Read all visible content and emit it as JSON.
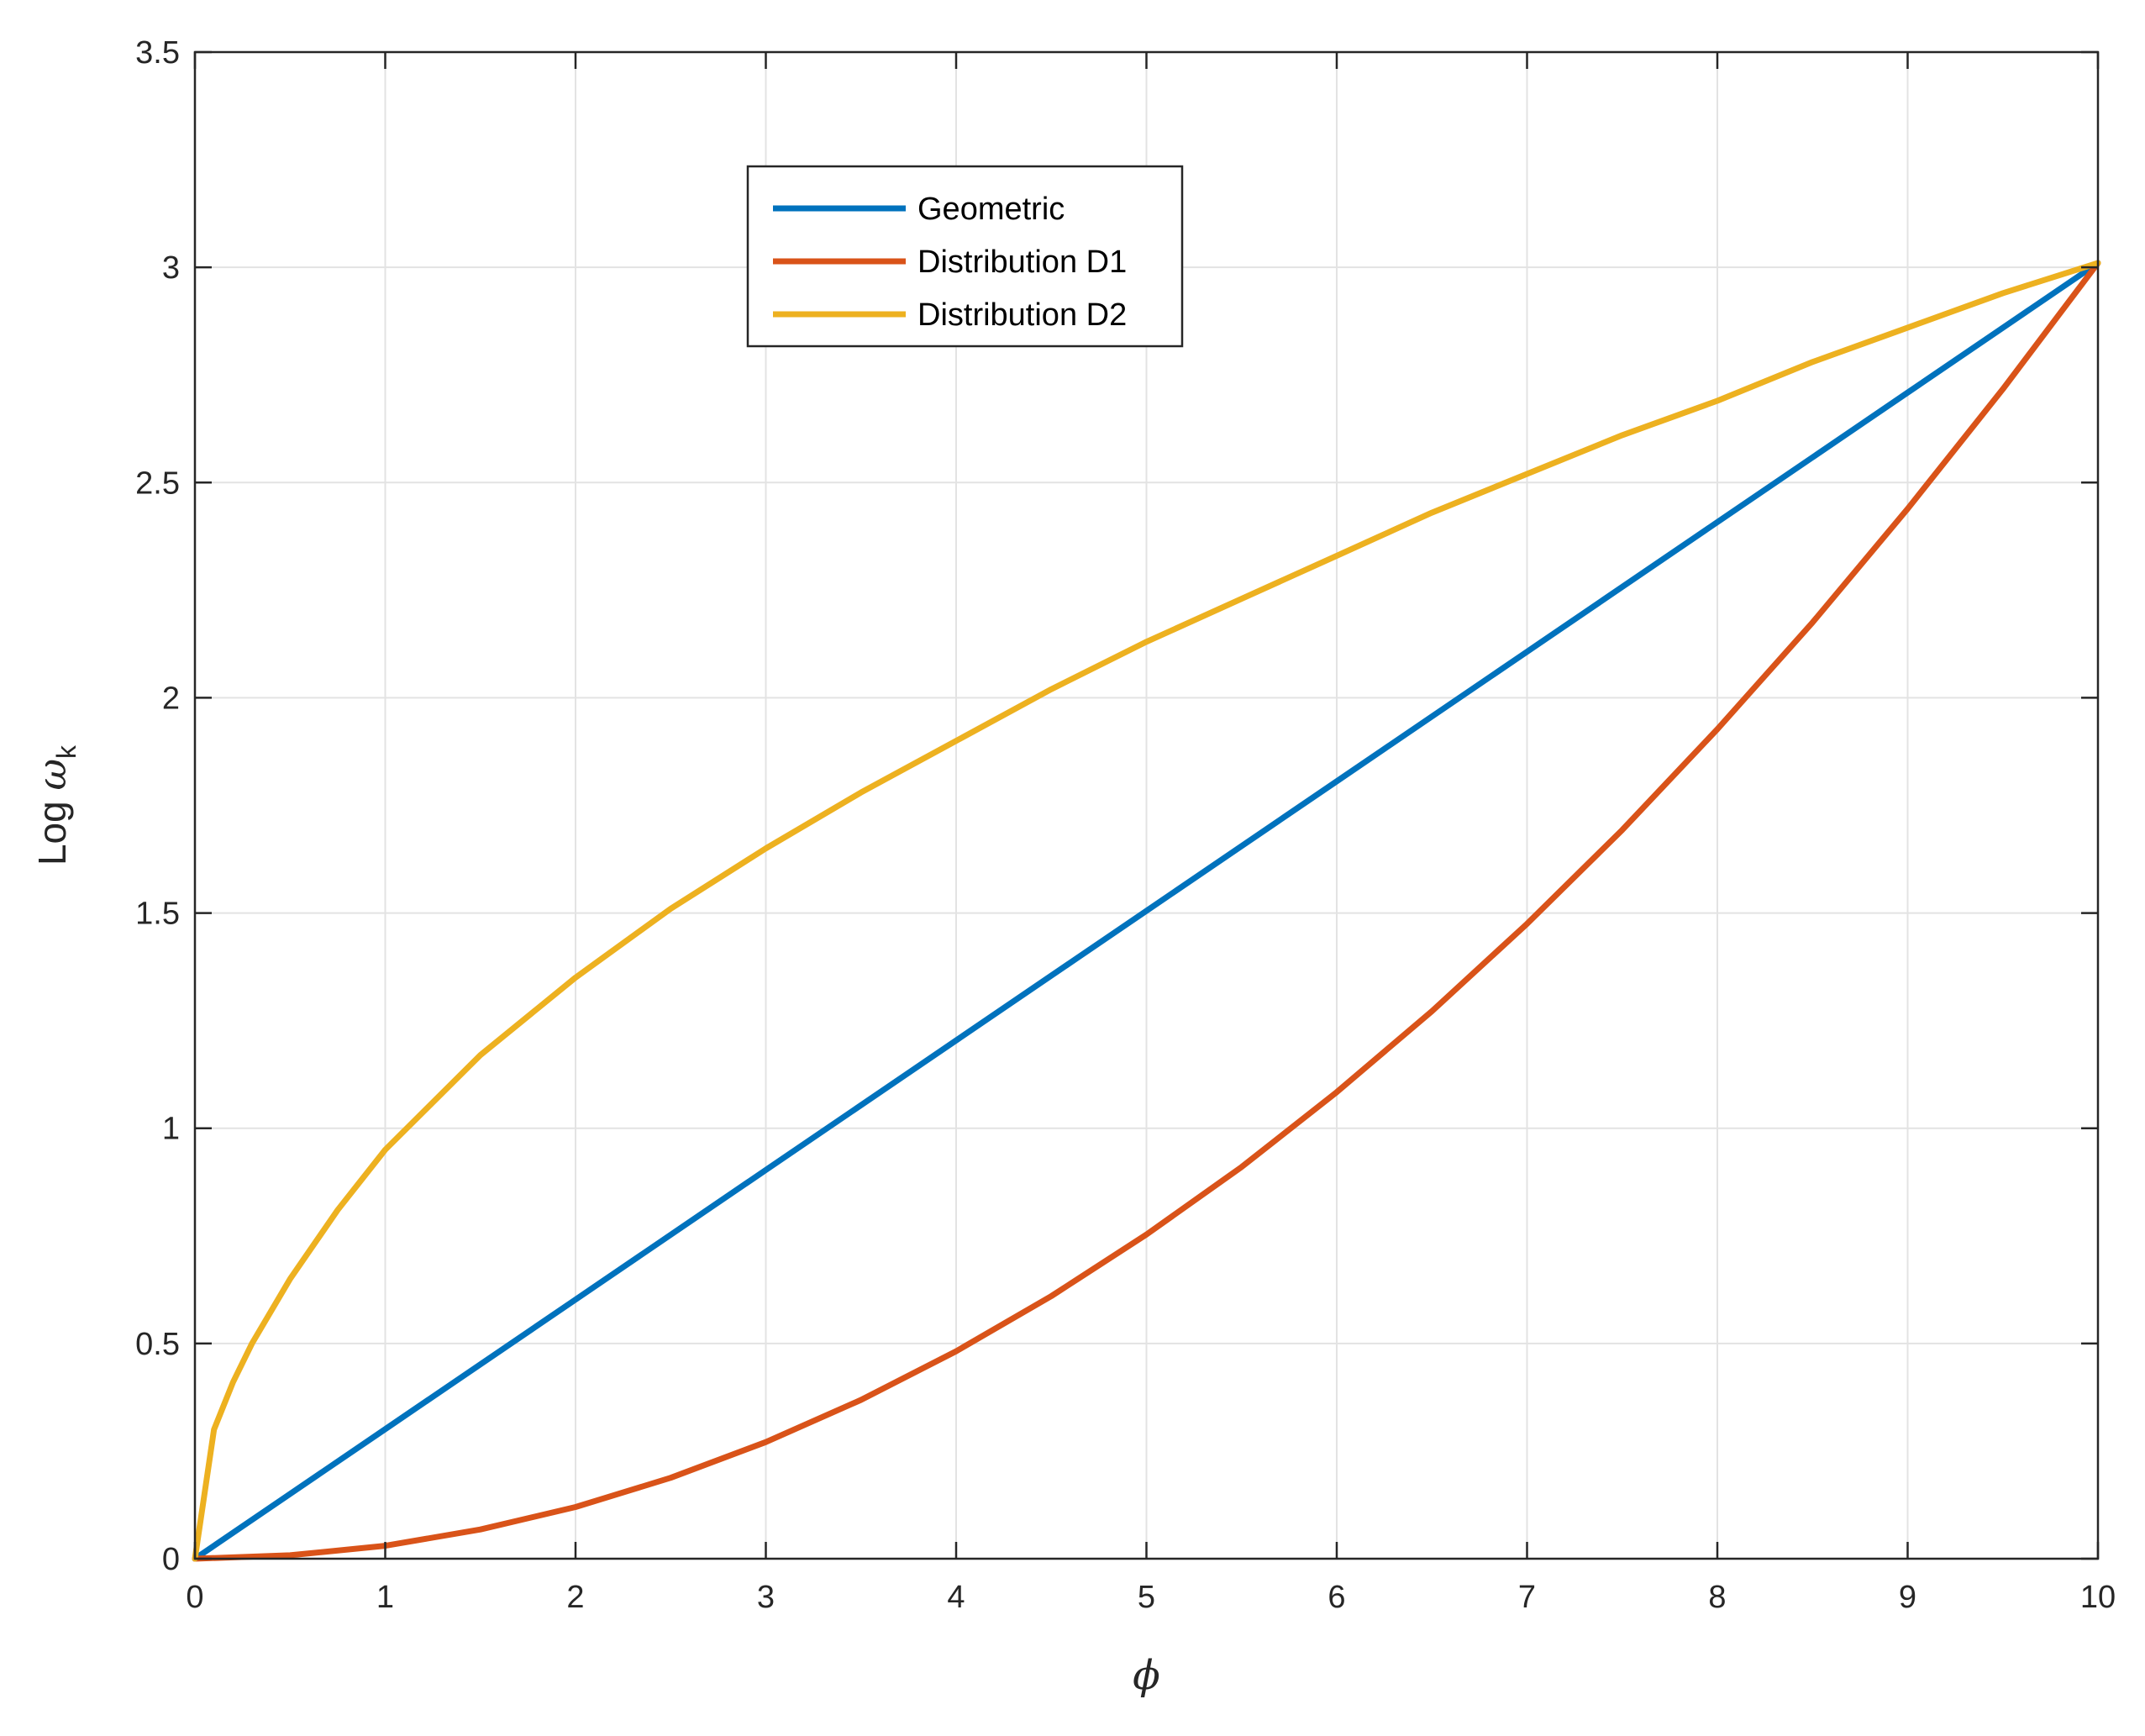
{
  "chart_data": {
    "type": "line",
    "title": "",
    "xlabel": "ϕ",
    "ylabel": {
      "prefix": "Log ",
      "symbol": "ω",
      "subscript": "k"
    },
    "xlim": [
      0,
      10
    ],
    "ylim": [
      0,
      3.5
    ],
    "xticks": [
      0,
      1,
      2,
      3,
      4,
      5,
      6,
      7,
      8,
      9,
      10
    ],
    "yticks": [
      0,
      0.5,
      1,
      1.5,
      2,
      2.5,
      3,
      3.5
    ],
    "xtick_labels": [
      "0",
      "1",
      "2",
      "3",
      "4",
      "5",
      "6",
      "7",
      "8",
      "9",
      "10"
    ],
    "ytick_labels": [
      "0",
      "0.5",
      "1",
      "1.5",
      "2",
      "2.5",
      "3",
      "3.5"
    ],
    "grid": true,
    "legend_position": "top-center",
    "series": [
      {
        "name": "Geometric",
        "color": "#0072BD",
        "x": [
          0,
          1,
          2,
          3,
          4,
          5,
          6,
          7,
          8,
          9,
          10
        ],
        "y": [
          0,
          0.301,
          0.602,
          0.903,
          1.204,
          1.505,
          1.806,
          2.107,
          2.408,
          2.709,
          3.01
        ]
      },
      {
        "name": "Distribution D1",
        "color": "#D95319",
        "x": [
          0,
          0.5,
          1,
          1.5,
          2,
          2.5,
          3,
          3.5,
          4,
          4.5,
          5,
          5.5,
          6,
          6.5,
          7,
          7.5,
          8,
          8.5,
          9,
          9.5,
          10
        ],
        "y": [
          0,
          0.008,
          0.03,
          0.068,
          0.12,
          0.188,
          0.271,
          0.369,
          0.482,
          0.61,
          0.753,
          0.91,
          1.084,
          1.272,
          1.475,
          1.693,
          1.927,
          2.175,
          2.439,
          2.717,
          3.01
        ]
      },
      {
        "name": "Distribution D2",
        "color": "#EDB120",
        "x": [
          0,
          0.1,
          0.2,
          0.3,
          0.5,
          0.75,
          1,
          1.5,
          2,
          2.5,
          3,
          3.5,
          4,
          4.5,
          5,
          5.5,
          6,
          6.5,
          7,
          7.5,
          8,
          8.5,
          9,
          9.5,
          10
        ],
        "y": [
          0,
          0.3,
          0.41,
          0.5,
          0.65,
          0.81,
          0.95,
          1.17,
          1.35,
          1.51,
          1.65,
          1.78,
          1.9,
          2.02,
          2.13,
          2.23,
          2.33,
          2.43,
          2.52,
          2.61,
          2.69,
          2.78,
          2.86,
          2.94,
          3.01
        ]
      }
    ]
  }
}
